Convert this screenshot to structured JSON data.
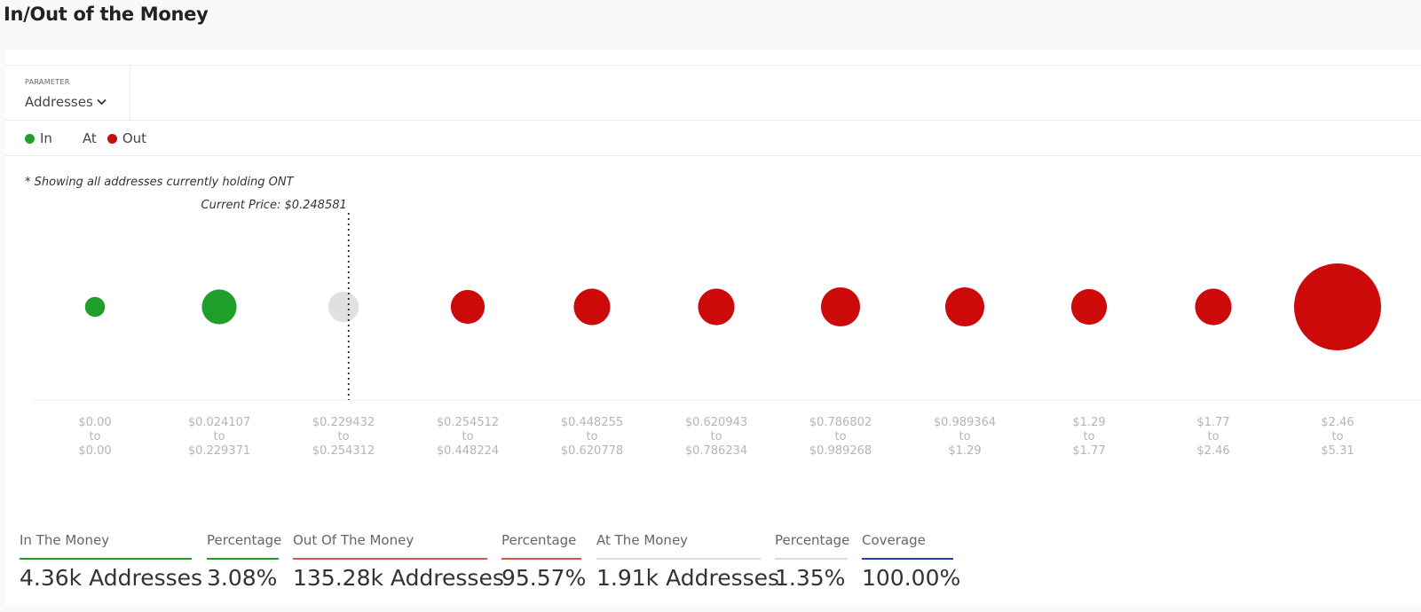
{
  "page": {
    "title": "In/Out of the Money"
  },
  "parameter": {
    "label": "PARAMETER",
    "value": "Addresses",
    "icon": "chevron-down-icon"
  },
  "legend": [
    {
      "label": "In",
      "color": "#1f9e2c"
    },
    {
      "label": "At",
      "color": "#e0e0e0"
    },
    {
      "label": "Out",
      "color": "#cc0a0a"
    }
  ],
  "note": "* Showing all addresses currently holding ONT",
  "chart_data": {
    "type": "bubble",
    "current_price_label": "Current Price: $0.248581",
    "current_price_value": 0.248581,
    "colors": {
      "in": "#1f9e2c",
      "at": "#e0e0e0",
      "out": "#cc0a0a"
    },
    "buckets": [
      {
        "from": "$0.00",
        "to_word": "to",
        "to": "$0.00",
        "status": "in",
        "relative_size": 0.23
      },
      {
        "from": "$0.024107",
        "to_word": "to",
        "to": "$0.229371",
        "status": "in",
        "relative_size": 0.4
      },
      {
        "from": "$0.229432",
        "to_word": "to",
        "to": "$0.254312",
        "status": "at",
        "relative_size": 0.35
      },
      {
        "from": "$0.254512",
        "to_word": "to",
        "to": "$0.448224",
        "status": "out",
        "relative_size": 0.39
      },
      {
        "from": "$0.448255",
        "to_word": "to",
        "to": "$0.620778",
        "status": "out",
        "relative_size": 0.42
      },
      {
        "from": "$0.620943",
        "to_word": "to",
        "to": "$0.786234",
        "status": "out",
        "relative_size": 0.42
      },
      {
        "from": "$0.786802",
        "to_word": "to",
        "to": "$0.989268",
        "status": "out",
        "relative_size": 0.45
      },
      {
        "from": "$0.989364",
        "to_word": "to",
        "to": "$1.29",
        "status": "out",
        "relative_size": 0.45
      },
      {
        "from": "$1.29",
        "to_word": "to",
        "to": "$1.77",
        "status": "out",
        "relative_size": 0.41
      },
      {
        "from": "$1.77",
        "to_word": "to",
        "to": "$2.46",
        "status": "out",
        "relative_size": 0.42
      },
      {
        "from": "$2.46",
        "to_word": "to",
        "to": "$5.31",
        "status": "out",
        "relative_size": 1.0
      }
    ]
  },
  "stats": [
    {
      "label": "In The Money",
      "value": "4.36k Addresses",
      "color": "#1f9e2c"
    },
    {
      "label": "Percentage",
      "value": "3.08%",
      "color": "#1f9e2c"
    },
    {
      "label": "Out Of The Money",
      "value": "135.28k Addresses",
      "color": "#d9534f"
    },
    {
      "label": "Percentage",
      "value": "95.57%",
      "color": "#d9534f"
    },
    {
      "label": "At The Money",
      "value": "1.91k Addresses",
      "color": "#dcdcdc"
    },
    {
      "label": "Percentage",
      "value": "1.35%",
      "color": "#dcdcdc"
    },
    {
      "label": "Coverage",
      "value": "100.00%",
      "color": "#1c3fbf"
    }
  ]
}
